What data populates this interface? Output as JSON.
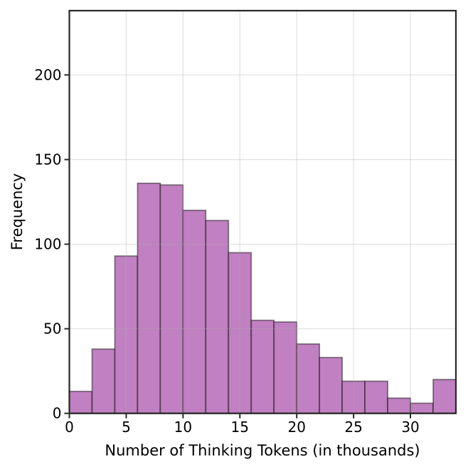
{
  "chart_data": {
    "type": "bar",
    "subtype": "histogram",
    "title": "",
    "xlabel": "Number of Thinking Tokens (in thousands)",
    "ylabel": "Frequency",
    "bin_width": 2,
    "bin_edges": [
      0,
      2,
      4,
      6,
      8,
      10,
      12,
      14,
      16,
      18,
      20,
      22,
      24,
      26,
      28,
      30,
      32,
      34
    ],
    "frequencies": [
      13,
      38,
      93,
      136,
      135,
      120,
      114,
      95,
      55,
      54,
      41,
      33,
      19,
      19,
      9,
      6,
      20
    ],
    "total_count": 1000,
    "x_ticks": [
      0,
      5,
      10,
      15,
      20,
      25,
      30
    ],
    "y_ticks": [
      0,
      50,
      100,
      150,
      200
    ],
    "xlim": [
      0,
      34
    ],
    "ylim": [
      0,
      238
    ],
    "grid": true,
    "legend": "none",
    "colors": {
      "bar_fill": "#C080C1",
      "bar_edge": "rgba(0,0,0,0.45)",
      "grid_line": "#b0b0b0",
      "spine": "#262626",
      "background": "#ffffff",
      "text": "#000000"
    }
  }
}
